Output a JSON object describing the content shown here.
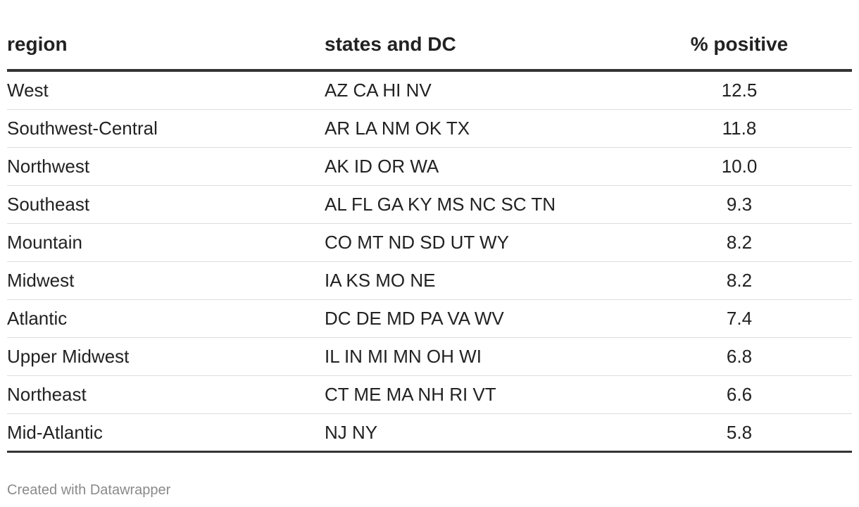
{
  "table": {
    "columns": [
      "region",
      "states and DC",
      "% positive"
    ],
    "rows": [
      [
        "West",
        "AZ CA HI NV",
        "12.5"
      ],
      [
        "Southwest-Central",
        "AR LA NM OK TX",
        "11.8"
      ],
      [
        "Northwest",
        "AK ID OR WA",
        "10.0"
      ],
      [
        "Southeast",
        "AL FL GA KY MS NC SC TN",
        "9.3"
      ],
      [
        "Mountain",
        "CO MT ND SD UT WY",
        "8.2"
      ],
      [
        "Midwest",
        "IA KS MO NE",
        "8.2"
      ],
      [
        "Atlantic",
        "DC DE MD PA VA WV",
        "7.4"
      ],
      [
        "Upper Midwest",
        "IL IN MI MN OH WI",
        "6.8"
      ],
      [
        "Northeast",
        "CT ME MA NH RI VT",
        "6.6"
      ],
      [
        "Mid-Atlantic",
        "NJ NY",
        "5.8"
      ]
    ]
  },
  "footer": "Created with Datawrapper"
}
